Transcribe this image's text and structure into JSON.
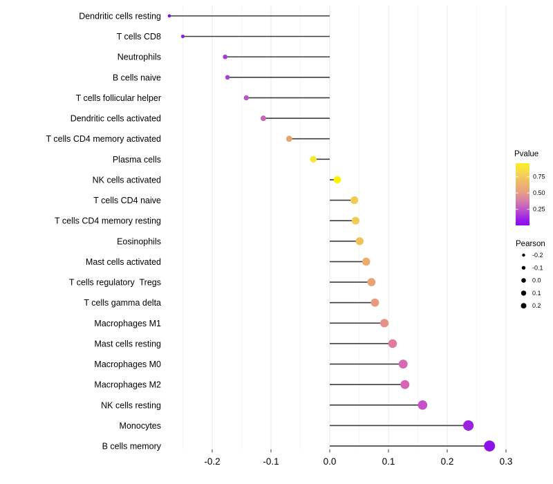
{
  "chart_data": {
    "type": "lollipop",
    "title": "",
    "xlabel": "",
    "ylabel": "",
    "grid": "on",
    "x_axis": {
      "tick_labels": [
        "-0.2",
        "-0.1",
        "0.0",
        "0.1",
        "0.2",
        "0.3"
      ],
      "tick_values": [
        -0.2,
        -0.1,
        0.0,
        0.1,
        0.2,
        0.3
      ],
      "minor_tick_values": [
        -0.25,
        -0.15,
        -0.05,
        0.05,
        0.15,
        0.25
      ],
      "xlim": [
        -0.285,
        0.315
      ]
    },
    "categories": [
      "Dendritic cells resting",
      "T cells CD8",
      "Neutrophils",
      "B cells naive",
      "T cells follicular helper",
      "Dendritic cells activated",
      "T cells CD4 memory activated",
      "Plasma cells",
      "NK cells activated",
      "T cells CD4 naive",
      "T cells CD4 memory resting",
      "Eosinophils",
      "Mast cells activated",
      "T cells regulatory  Tregs",
      "T cells gamma delta",
      "Macrophages M1",
      "Mast cells resting",
      "Macrophages M0",
      "Macrophages M2",
      "NK cells resting",
      "Monocytes",
      "B cells memory"
    ],
    "points": [
      {
        "label": "Dendritic cells resting",
        "pearson": -0.273,
        "color": "#7C15E6"
      },
      {
        "label": "T cells CD8",
        "pearson": -0.25,
        "color": "#8C1CE2"
      },
      {
        "label": "Neutrophils",
        "pearson": -0.178,
        "color": "#A43CD6"
      },
      {
        "label": "B cells naive",
        "pearson": -0.174,
        "color": "#A843D2"
      },
      {
        "label": "T cells follicular helper",
        "pearson": -0.142,
        "color": "#BB54C4"
      },
      {
        "label": "Dendritic cells activated",
        "pearson": -0.113,
        "color": "#C765B0"
      },
      {
        "label": "T cells CD4 memory activated",
        "pearson": -0.069,
        "color": "#E9A473"
      },
      {
        "label": "Plasma cells",
        "pearson": -0.028,
        "color": "#F6E838"
      },
      {
        "label": "NK cells activated",
        "pearson": 0.013,
        "color": "#FCF303"
      },
      {
        "label": "T cells CD4 naive",
        "pearson": 0.042,
        "color": "#F1CC55"
      },
      {
        "label": "T cells CD4 memory resting",
        "pearson": 0.044,
        "color": "#F0CB58"
      },
      {
        "label": "Eosinophils",
        "pearson": 0.051,
        "color": "#EFC25E"
      },
      {
        "label": "Mast cells activated",
        "pearson": 0.062,
        "color": "#ECAC6B"
      },
      {
        "label": "T cells regulatory  Tregs",
        "pearson": 0.071,
        "color": "#E9A175"
      },
      {
        "label": "T cells gamma delta",
        "pearson": 0.077,
        "color": "#E79B7D"
      },
      {
        "label": "Macrophages M1",
        "pearson": 0.093,
        "color": "#E6908C"
      },
      {
        "label": "Mast cells resting",
        "pearson": 0.107,
        "color": "#DE7D9D"
      },
      {
        "label": "Macrophages M0",
        "pearson": 0.125,
        "color": "#D56AB2"
      },
      {
        "label": "Macrophages M2",
        "pearson": 0.128,
        "color": "#D367B6"
      },
      {
        "label": "NK cells resting",
        "pearson": 0.158,
        "color": "#C550CA"
      },
      {
        "label": "Monocytes",
        "pearson": 0.236,
        "color": "#9C22E2"
      },
      {
        "label": "B cells memory",
        "pearson": 0.272,
        "color": "#8D11E8"
      }
    ],
    "legend_pvalue": {
      "title": "Pvalue",
      "tick_labels": [
        "0.75",
        "0.50",
        "0.25"
      ],
      "tick_values": [
        0.75,
        0.5,
        0.25
      ],
      "bar_range": [
        0.0,
        0.96
      ],
      "gradient_bottom_to_top": [
        {
          "offset": 0.0,
          "color": "#8A0CF0"
        },
        {
          "offset": 0.1,
          "color": "#9B1EE8"
        },
        {
          "offset": 0.25,
          "color": "#BC53C8"
        },
        {
          "offset": 0.4,
          "color": "#D97FA6"
        },
        {
          "offset": 0.55,
          "color": "#E8A27F"
        },
        {
          "offset": 0.7,
          "color": "#EFBA6B"
        },
        {
          "offset": 0.85,
          "color": "#F6D74E"
        },
        {
          "offset": 1.0,
          "color": "#F9EF27"
        }
      ]
    },
    "legend_pearson": {
      "title": "Pearson",
      "dot_color": "#000000",
      "entries": [
        {
          "label": "-0.2",
          "radius": 2.2
        },
        {
          "label": "-0.1",
          "radius": 2.7
        },
        {
          "label": "0.0",
          "radius": 3.3
        },
        {
          "label": "0.1",
          "radius": 3.7
        },
        {
          "label": "0.2",
          "radius": 4.0
        }
      ]
    },
    "style": {
      "stem_color": "#3D3D3D",
      "major_grid_color": "#E9E9E9",
      "minor_grid_color": "#F4F4F4",
      "tick_mark_color": "#333333",
      "text_color": "#000000"
    }
  }
}
